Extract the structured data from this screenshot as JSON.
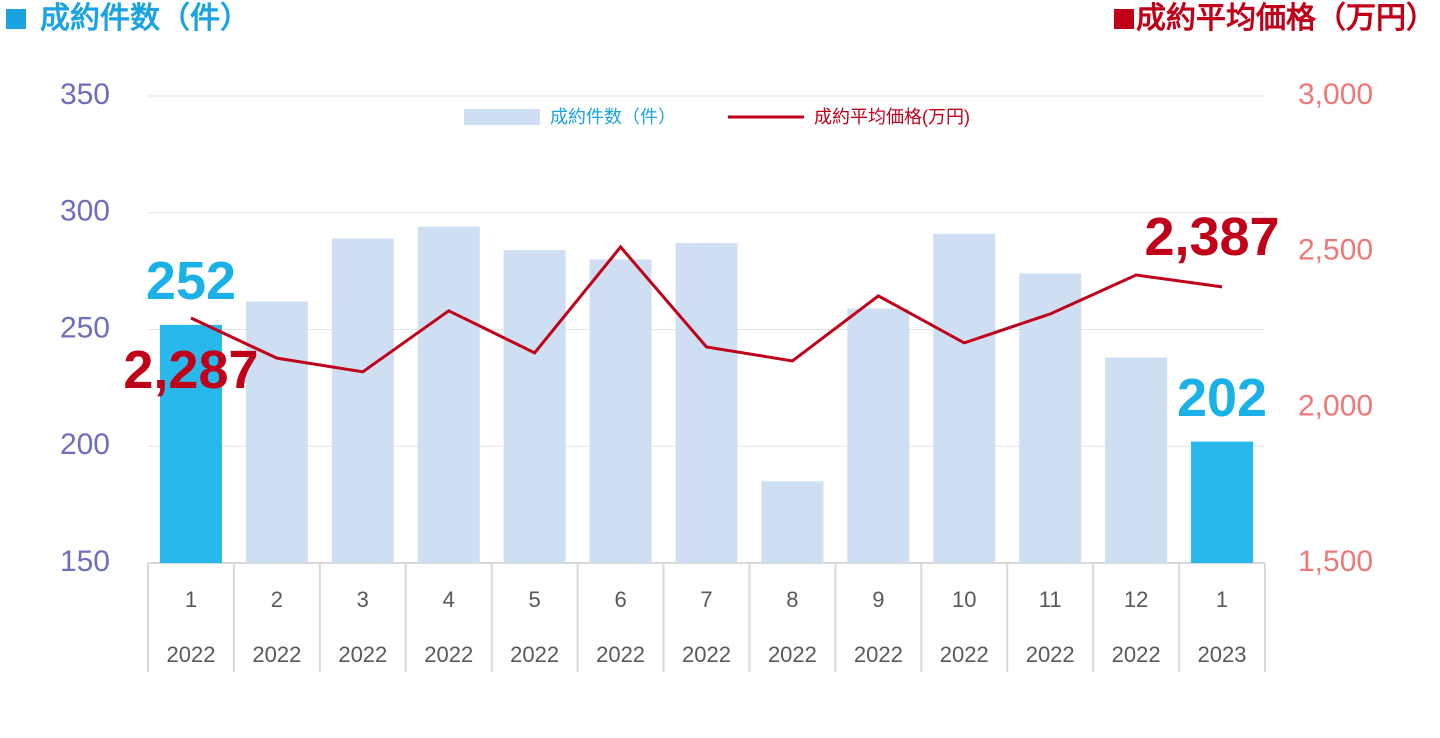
{
  "chart_data": {
    "type": "bar_line",
    "y_label": "成約件数（件）",
    "y2_label": "成約平均価格（万円）",
    "categories": [
      "1",
      "2",
      "3",
      "4",
      "5",
      "6",
      "7",
      "8",
      "9",
      "10",
      "11",
      "12",
      "1"
    ],
    "category_years": [
      "2022",
      "2022",
      "2022",
      "2022",
      "2022",
      "2022",
      "2022",
      "2022",
      "2022",
      "2022",
      "2022",
      "2022",
      "2023"
    ],
    "series": [
      {
        "name": "成約件数（件）",
        "type": "bar",
        "color": "#cfdff3",
        "colors": [
          "#29b8ec",
          "#cfdff3",
          "#cfdff3",
          "#cfdff3",
          "#cfdff3",
          "#cfdff3",
          "#cfdff3",
          "#cfdff3",
          "#cfdff3",
          "#cfdff3",
          "#cfdff3",
          "#cfdff3",
          "#29b8ec"
        ],
        "values": [
          252,
          262,
          289,
          294,
          284,
          280,
          287,
          185,
          259,
          291,
          274,
          238,
          202
        ],
        "value_labels": [
          "252",
          null,
          null,
          null,
          null,
          null,
          null,
          null,
          null,
          null,
          null,
          null,
          "202"
        ],
        "label_color": "#1ab0e8"
      },
      {
        "name": "成約平均価格(万円)",
        "type": "line",
        "axis": "y2",
        "color": "#c00018",
        "values": [
          2287,
          2158,
          2114,
          2310,
          2175,
          2515,
          2194,
          2149,
          2358,
          2207,
          2300,
          2425,
          2387
        ],
        "value_labels": [
          "2,287",
          null,
          null,
          null,
          null,
          null,
          null,
          null,
          null,
          null,
          null,
          null,
          "2,387"
        ],
        "label_color": "#c00018"
      }
    ],
    "ylim": [
      150,
      350
    ],
    "yticks": [
      150,
      200,
      250,
      300,
      350
    ],
    "ytick_color": "#6e6ebf",
    "y2lim": [
      1500,
      3000
    ],
    "y2ticks": [
      {
        "value": 1500,
        "label": "1,500"
      },
      {
        "value": 2000,
        "label": "2,000"
      },
      {
        "value": 2500,
        "label": "2,500"
      },
      {
        "value": 3000,
        "label": "3,000"
      }
    ],
    "y2tick_color": "#ee7878",
    "grid": true,
    "legend": "top"
  }
}
